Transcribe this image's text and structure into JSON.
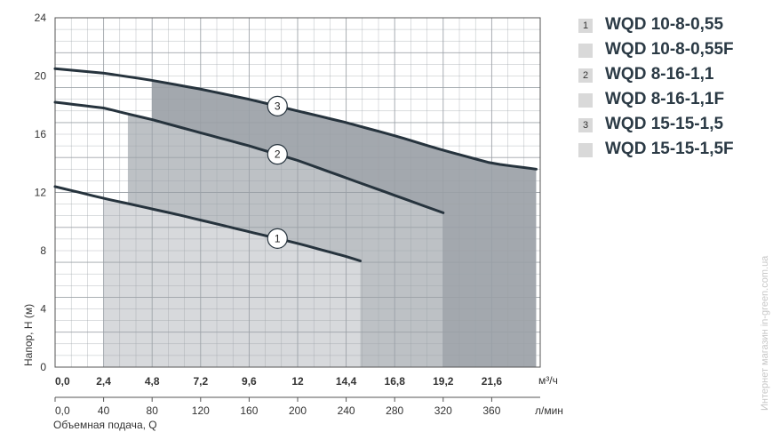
{
  "chart_data": {
    "type": "line",
    "xlabel": "Объемная подача, Q",
    "ylabel": "Напор, H (м)",
    "x_unit": "м³/ч",
    "x2_unit": "л/мин",
    "xlim": [
      0,
      24
    ],
    "ylim": [
      0,
      24
    ],
    "x_ticks": [
      "0,0",
      "2,4",
      "4,8",
      "7,2",
      "9,6",
      "12",
      "14,4",
      "16,8",
      "19,2",
      "21,6"
    ],
    "x2_ticks": [
      "0,0",
      "40",
      "80",
      "120",
      "160",
      "200",
      "240",
      "280",
      "320",
      "360"
    ],
    "y_ticks": [
      "0",
      "4",
      "8",
      "12",
      "16",
      "20",
      "24"
    ],
    "grid": true,
    "series": [
      {
        "marker": "1",
        "x": [
          0,
          2.4,
          6,
          9.6,
          12,
          14.4,
          15.1
        ],
        "y": [
          12.4,
          11.6,
          10.5,
          9.3,
          8.5,
          7.6,
          7.3
        ],
        "region_x": [
          2.4,
          15.1
        ],
        "fill": "#d7d9dc"
      },
      {
        "marker": "2",
        "x": [
          0,
          2.4,
          4.8,
          7.2,
          9.6,
          12,
          14.4,
          16.8,
          19.2
        ],
        "y": [
          18.2,
          17.8,
          17.0,
          16.1,
          15.2,
          14.2,
          13.0,
          11.8,
          10.6
        ],
        "region_x": [
          3.6,
          19.2
        ],
        "fill": "#bdc1c5"
      },
      {
        "marker": "3",
        "x": [
          0,
          2.4,
          4.8,
          7.2,
          9.6,
          12,
          14.4,
          16.8,
          19.2,
          21.6,
          23.8
        ],
        "y": [
          20.5,
          20.2,
          19.7,
          19.1,
          18.4,
          17.6,
          16.8,
          15.9,
          14.9,
          14.0,
          13.6
        ],
        "region_x": [
          4.8,
          23.8
        ],
        "fill": "#a3a8ae"
      }
    ],
    "legend": [
      "WQD 10-8-0,55",
      "WQD 10-8-0,55F",
      "WQD 8-16-1,1",
      "WQD 8-16-1,1F",
      "WQD 15-15-1,5",
      "WQD 15-15-1,5F"
    ],
    "legend_badges": [
      "1",
      "",
      "2",
      "",
      "3",
      ""
    ],
    "legend_placement": "right"
  },
  "watermark": "Интернет магазин in-green.com.ua",
  "colors": {
    "curve": "#26333d",
    "grid": "#9aa0a6",
    "marker_bg": "#ffffff"
  }
}
